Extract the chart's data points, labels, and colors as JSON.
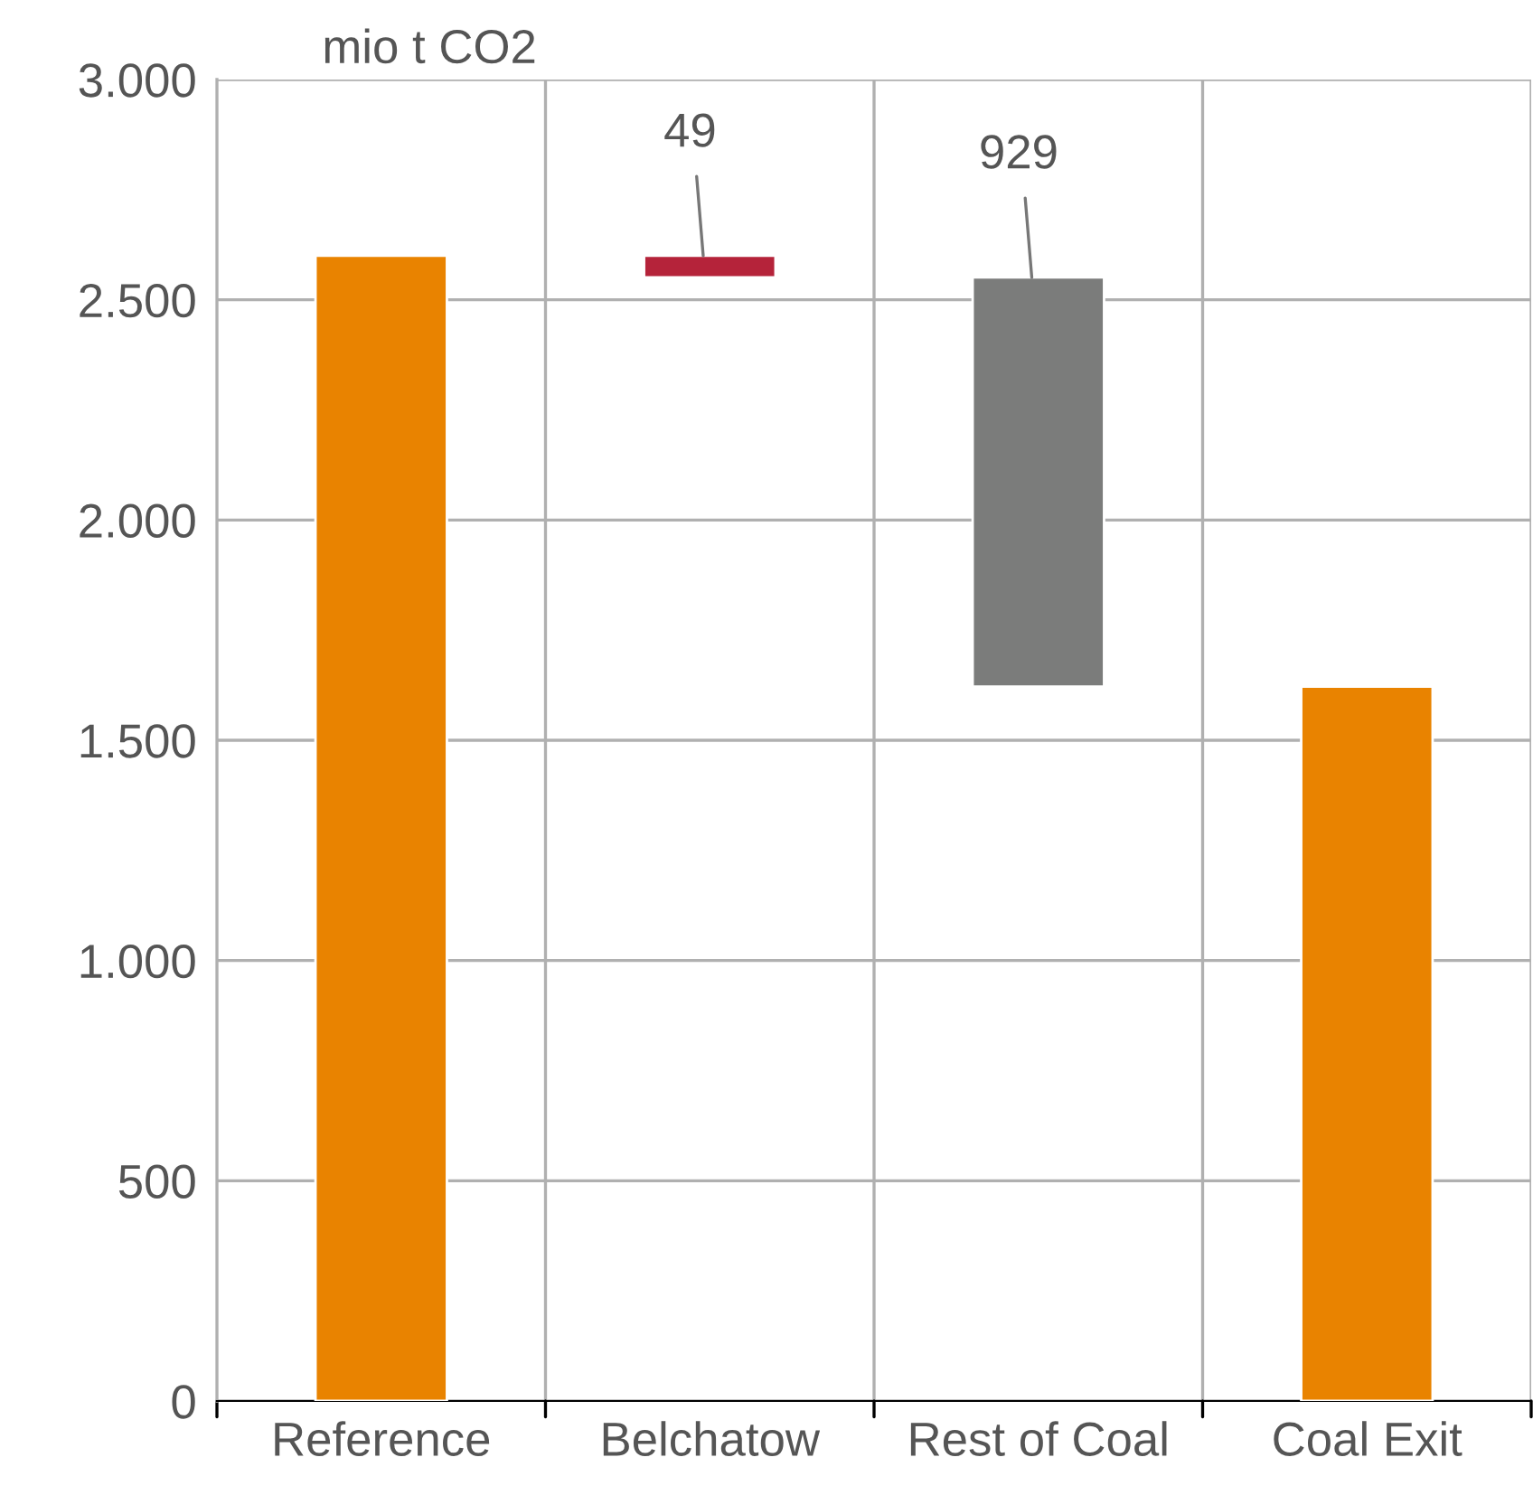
{
  "chart_data": {
    "type": "bar",
    "ylabel": "mio t CO2",
    "categories": [
      "Reference",
      "Belchatow",
      "Rest of Coal",
      "Coal Exit"
    ],
    "values": [
      2600,
      49,
      929,
      1622
    ],
    "base": [
      0,
      2551,
      1622,
      0
    ],
    "colors": [
      "#e98300",
      "#b5233a",
      "#7b7c7b",
      "#e98300"
    ],
    "value_labels": [
      null,
      "49",
      "929",
      null
    ],
    "ylim": [
      0,
      3000
    ],
    "yticks": [
      {
        "value": 0,
        "label": "0"
      },
      {
        "value": 500,
        "label": "500"
      },
      {
        "value": 1000,
        "label": "1.000"
      },
      {
        "value": 1500,
        "label": "1.500"
      },
      {
        "value": 2000,
        "label": "2.000"
      },
      {
        "value": 2500,
        "label": "2.500"
      },
      {
        "value": 3000,
        "label": "3.000"
      }
    ],
    "grid": true
  }
}
